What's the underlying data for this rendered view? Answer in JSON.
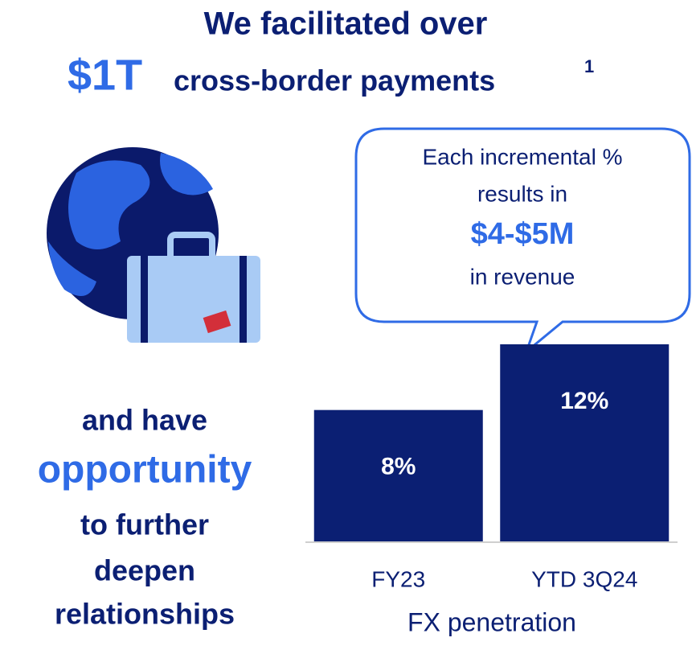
{
  "headline": {
    "line1": "We facilitated over",
    "amount": "$1T",
    "rest": "cross-border payments",
    "footnote": "1"
  },
  "left_text": [
    "and have",
    "opportunity",
    "to further",
    "deepen",
    "relationships"
  ],
  "callout": {
    "line1": "Each incremental %",
    "line2": "results in",
    "amount": "$4-$5M",
    "line4": "in revenue"
  },
  "chart_data": {
    "type": "bar",
    "x_label": "FX penetration",
    "categories": [
      "FY23",
      "YTD 3Q24"
    ],
    "values": [
      8,
      12
    ],
    "value_labels": [
      "8%",
      "12%"
    ],
    "color": "#0b1f73",
    "ylim": [
      0,
      12
    ]
  }
}
